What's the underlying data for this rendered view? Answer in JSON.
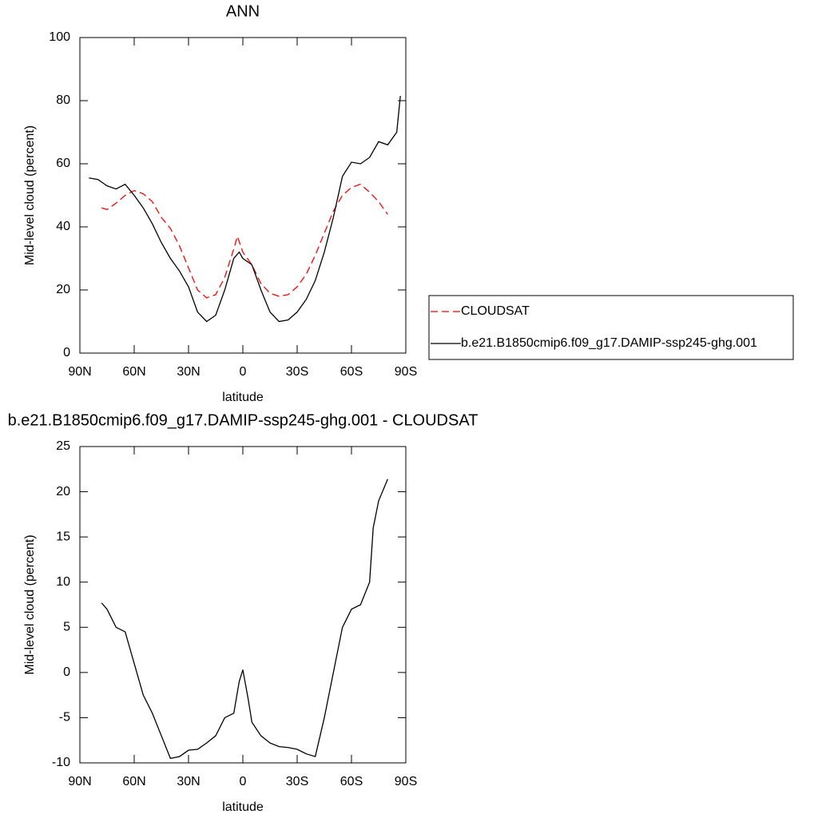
{
  "chart_data": [
    {
      "type": "line",
      "title": "ANN",
      "x_label": "latitude",
      "y_label": "Mid-level cloud (percent)",
      "xlim": [
        90,
        -90
      ],
      "xticks": [
        {
          "value": 90,
          "label": "90N"
        },
        {
          "value": 60,
          "label": "60N"
        },
        {
          "value": 30,
          "label": "30N"
        },
        0,
        {
          "value": -30,
          "label": "30S"
        },
        {
          "value": -60,
          "label": "60S"
        },
        {
          "value": -90,
          "label": "90S"
        }
      ],
      "ylim": [
        0,
        100
      ],
      "yticks": [
        0,
        20,
        40,
        60,
        80,
        100
      ],
      "legend": "right",
      "series": [
        {
          "name": "CLOUDSAT",
          "color": "#ff0000",
          "dash": "dashed",
          "x": [
            78,
            75,
            70,
            65,
            60,
            55,
            50,
            45,
            40,
            35,
            30,
            25,
            20,
            15,
            10,
            5,
            3,
            0,
            -5,
            -10,
            -15,
            -20,
            -25,
            -30,
            -35,
            -40,
            -45,
            -50,
            -55,
            -60,
            -65,
            -70,
            -75,
            -80
          ],
          "values": [
            46,
            45.5,
            47.5,
            50,
            51.5,
            50.5,
            48,
            43,
            39.5,
            34,
            27,
            20,
            17.5,
            18.5,
            24,
            33,
            37,
            32,
            28,
            22,
            19,
            18,
            18.5,
            21,
            25,
            31,
            38,
            45,
            50,
            52.5,
            53.5,
            51,
            48,
            44
          ]
        },
        {
          "name": "b.e21.B1850cmip6.f09_g17.DAMIP-ssp245-ghg.001",
          "color": "#000000",
          "dash": "solid",
          "x": [
            85,
            80,
            75,
            70,
            65,
            60,
            55,
            50,
            45,
            40,
            35,
            30,
            25,
            20,
            15,
            10,
            5,
            2,
            0,
            -5,
            -10,
            -15,
            -20,
            -25,
            -30,
            -35,
            -40,
            -45,
            -50,
            -55,
            -60,
            -65,
            -70,
            -75,
            -80,
            -85,
            -87
          ],
          "values": [
            55.5,
            55,
            53,
            52,
            53.5,
            50,
            46,
            41,
            35,
            30,
            26,
            21,
            13,
            10,
            12,
            20,
            30,
            32,
            30,
            28,
            20,
            13,
            10,
            10.5,
            13,
            17,
            23,
            32,
            43,
            56,
            60.5,
            60,
            62,
            67,
            66,
            70,
            81.5
          ]
        }
      ]
    },
    {
      "type": "line",
      "title": "b.e21.B1850cmip6.f09_g17.DAMIP-ssp245-ghg.001 - CLOUDSAT",
      "x_label": "latitude",
      "y_label": "Mid-level cloud (percent)",
      "xlim": [
        90,
        -90
      ],
      "xticks": [
        {
          "value": 90,
          "label": "90N"
        },
        {
          "value": 60,
          "label": "60N"
        },
        {
          "value": 30,
          "label": "30N"
        },
        0,
        {
          "value": -30,
          "label": "30S"
        },
        {
          "value": -60,
          "label": "60S"
        },
        {
          "value": -90,
          "label": "90S"
        }
      ],
      "ylim": [
        -10,
        25
      ],
      "yticks": [
        -10,
        -5,
        0,
        5,
        10,
        15,
        20,
        25
      ],
      "series": [
        {
          "color": "#000000",
          "dash": "solid",
          "x": [
            78,
            75,
            70,
            65,
            60,
            55,
            50,
            45,
            40,
            35,
            30,
            25,
            20,
            15,
            10,
            5,
            2,
            0,
            -3,
            -5,
            -10,
            -15,
            -20,
            -25,
            -30,
            -35,
            -40,
            -45,
            -50,
            -55,
            -60,
            -65,
            -70,
            -72,
            -75,
            -80
          ],
          "values": [
            7.7,
            7,
            5,
            4.5,
            1,
            -2.5,
            -4.5,
            -7,
            -9.5,
            -9.3,
            -8.6,
            -8.5,
            -7.8,
            -7,
            -5,
            -4.5,
            -1,
            0.3,
            -3,
            -5.5,
            -7,
            -7.8,
            -8.2,
            -8.3,
            -8.5,
            -9,
            -9.3,
            -5,
            0,
            5,
            7,
            7.5,
            10,
            16,
            19,
            21.4
          ]
        }
      ]
    }
  ]
}
